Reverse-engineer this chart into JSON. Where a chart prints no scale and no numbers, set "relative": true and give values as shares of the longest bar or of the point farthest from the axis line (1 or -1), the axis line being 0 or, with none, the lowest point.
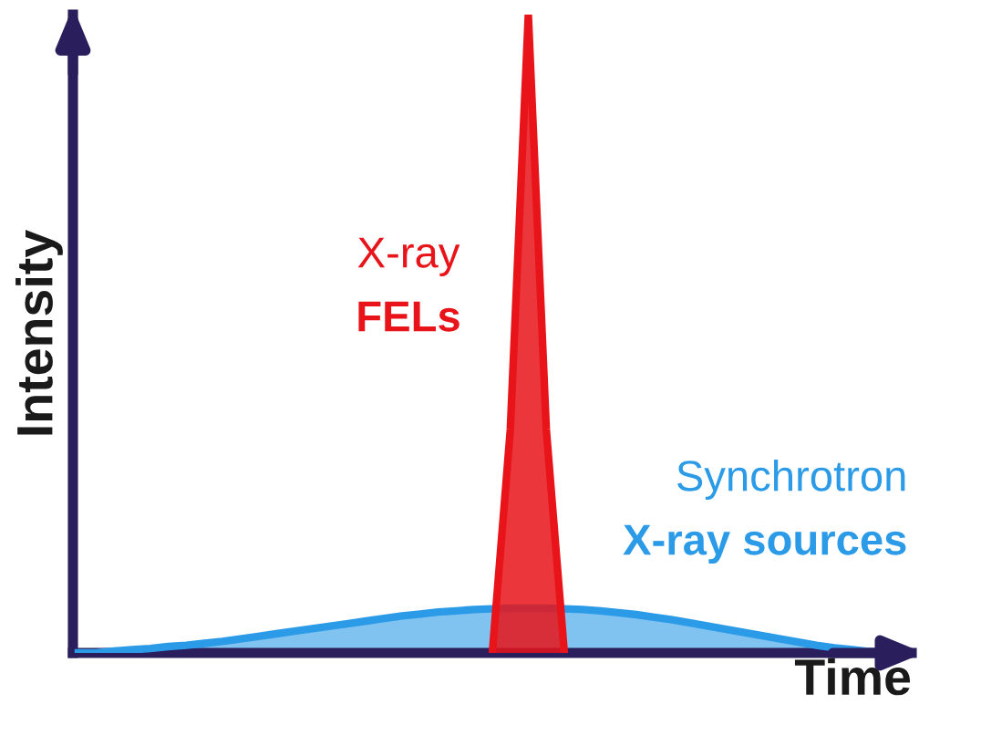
{
  "chart_data": {
    "type": "area",
    "relative": true,
    "xlabel": "Time",
    "ylabel": "Intensity",
    "legend": false,
    "categories": [
      null,
      null,
      null,
      null,
      null,
      null,
      null,
      null,
      null,
      null,
      null,
      null,
      null,
      null,
      null,
      null,
      null,
      null,
      null,
      null,
      null,
      null,
      null,
      null,
      null,
      null,
      null,
      null,
      null,
      null,
      null,
      null,
      null,
      null,
      null,
      null,
      null,
      null,
      null,
      null,
      null,
      null,
      null,
      null,
      null,
      null,
      null
    ],
    "series": [
      {
        "name": "Synchrotron\nX-ray sources",
        "color": "#2b9be8",
        "values": [
          0,
          0,
          0.003,
          0.005,
          0.007,
          0.01,
          0.012,
          0.015,
          0.018,
          0.022,
          0.026,
          0.03,
          0.034,
          0.038,
          0.042,
          0.046,
          0.05,
          0.054,
          0.058,
          0.061,
          0.064,
          0.066,
          0.068,
          0.069,
          0.07,
          0.07,
          0.07,
          0.069,
          0.068,
          0.066,
          0.063,
          0.06,
          0.056,
          0.052,
          0.047,
          0.042,
          0.037,
          0.032,
          0.027,
          0.022,
          0.017,
          0.012,
          0.008,
          0.005,
          0.002,
          0,
          0
        ]
      },
      {
        "name": "X-ray\nFELs",
        "color": "#e8141a",
        "values": [
          null,
          null,
          null,
          null,
          null,
          null,
          null,
          null,
          null,
          null,
          null,
          null,
          null,
          null,
          null,
          null,
          null,
          null,
          null,
          null,
          null,
          null,
          null,
          0,
          0.35,
          1,
          0.35,
          0,
          null,
          null,
          null,
          null,
          null,
          null,
          null,
          null,
          null,
          null,
          null,
          null,
          null,
          null,
          null,
          null,
          null,
          null,
          null
        ]
      }
    ]
  }
}
